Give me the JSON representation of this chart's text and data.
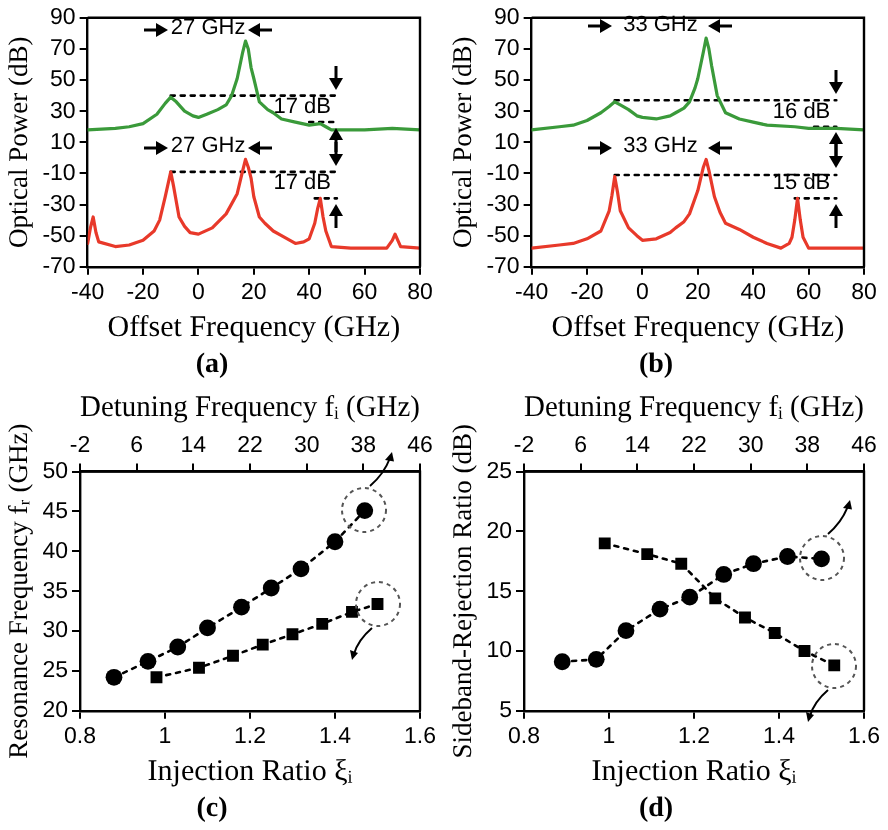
{
  "chart_data": [
    {
      "type": "line",
      "title": "(a)",
      "xlabel": "Offset Frequency (GHz)",
      "ylabel": "Optical Power (dB)",
      "xlim": [
        -40,
        80
      ],
      "xticks": [
        -40,
        -20,
        0,
        20,
        40,
        60,
        80
      ],
      "ylim": [
        -70,
        90
      ],
      "yticks": [
        -70,
        -50,
        -30,
        -10,
        10,
        30,
        50,
        70,
        90
      ],
      "grid": false,
      "marker": "none",
      "line_style": "solid",
      "series": [
        {
          "color": "#3a9a3a",
          "x": [
            -40,
            -30,
            -25,
            -20,
            -15,
            -12,
            -10,
            -8,
            -5,
            -2,
            0,
            3,
            7,
            10,
            12,
            14,
            16,
            17,
            18,
            19,
            20,
            22,
            25,
            27,
            30,
            35,
            40,
            44,
            46,
            48,
            60,
            70,
            80
          ],
          "values": [
            18,
            19,
            20,
            22,
            28,
            35,
            39,
            36,
            30,
            27,
            26,
            28,
            31,
            34,
            40,
            51,
            68,
            75,
            70,
            58,
            51,
            36,
            31,
            29,
            25,
            23,
            21,
            22,
            20,
            18,
            18,
            19,
            18
          ]
        },
        {
          "color": "#e8392a",
          "x": [
            -40,
            -39,
            -38,
            -37,
            -36,
            -30,
            -25,
            -20,
            -16,
            -14,
            -12,
            -10,
            -9,
            -7,
            -5,
            -3,
            0,
            5,
            10,
            14,
            16,
            17,
            18,
            19,
            20,
            22,
            24,
            27,
            30,
            35,
            38,
            40,
            42,
            43,
            44,
            45,
            46,
            48,
            55,
            60,
            68,
            70,
            71,
            72,
            73,
            80
          ],
          "values": [
            -55,
            -45,
            -38,
            -48,
            -54,
            -57,
            -56,
            -53,
            -47,
            -40,
            -25,
            -9,
            -18,
            -38,
            -44,
            -48,
            -49,
            -45,
            -36,
            -23,
            -8,
            -1,
            -6,
            -13,
            -25,
            -38,
            -42,
            -47,
            -50,
            -55,
            -54,
            -52,
            -42,
            -33,
            -26,
            -38,
            -47,
            -57,
            -58,
            -58,
            -58,
            -53,
            -49,
            -53,
            -57,
            -58
          ]
        },
        {
          "type": "line",
          "color": "#000000",
          "line_style": "dotted",
          "x": [
            -10,
            50
          ],
          "values": [
            40,
            40
          ]
        },
        {
          "type": "line",
          "color": "#000000",
          "line_style": "dotted",
          "x": [
            40,
            50
          ],
          "values": [
            23,
            23
          ]
        },
        {
          "type": "line",
          "color": "#000000",
          "line_style": "dotted",
          "x": [
            -10,
            50
          ],
          "values": [
            -9,
            -9
          ]
        },
        {
          "type": "line",
          "color": "#000000",
          "line_style": "dotted",
          "x": [
            42,
            50
          ],
          "values": [
            -26,
            -26
          ]
        }
      ],
      "annotations": [
        "27 GHz",
        "17 dB",
        "27 GHz",
        "17 dB"
      ]
    },
    {
      "type": "line",
      "title": "(b)",
      "xlabel": "Offset Frequency (GHz)",
      "ylabel": "Optical Power (dB)",
      "xlim": [
        -40,
        80
      ],
      "xticks": [
        -40,
        -20,
        0,
        20,
        40,
        60,
        80
      ],
      "ylim": [
        -70,
        90
      ],
      "yticks": [
        -70,
        -50,
        -30,
        -10,
        10,
        30,
        50,
        70,
        90
      ],
      "grid": false,
      "marker": "none",
      "line_style": "solid",
      "series": [
        {
          "color": "#3a9a3a",
          "x": [
            -40,
            -30,
            -25,
            -20,
            -15,
            -12,
            -10,
            -8,
            -5,
            -2,
            0,
            5,
            10,
            12,
            15,
            17,
            19,
            20,
            22,
            23,
            24,
            25,
            27,
            30,
            35,
            40,
            45,
            55,
            60,
            70,
            80
          ],
          "values": [
            18,
            20,
            21,
            24,
            29,
            33,
            36,
            34,
            31,
            27,
            26,
            25,
            27,
            29,
            32,
            36,
            45,
            51,
            68,
            77,
            70,
            59,
            40,
            29,
            25,
            23,
            21,
            20,
            19,
            19,
            18
          ]
        },
        {
          "color": "#e8392a",
          "x": [
            -40,
            -30,
            -25,
            -20,
            -15,
            -12,
            -11,
            -10,
            -9,
            -8,
            -5,
            -2,
            0,
            5,
            10,
            12,
            15,
            17,
            20,
            22,
            23,
            24,
            26,
            28,
            30,
            35,
            40,
            45,
            50,
            53,
            54,
            55,
            56,
            57,
            58,
            60,
            70,
            80
          ],
          "values": [
            -58,
            -56,
            -55,
            -52,
            -47,
            -34,
            -24,
            -12,
            -22,
            -34,
            -45,
            -50,
            -53,
            -52,
            -48,
            -45,
            -41,
            -36,
            -21,
            -6,
            -1,
            -8,
            -25,
            -35,
            -42,
            -46,
            -51,
            -55,
            -58,
            -55,
            -51,
            -40,
            -26,
            -40,
            -51,
            -58,
            -58,
            -58
          ]
        },
        {
          "type": "line",
          "color": "#000000",
          "line_style": "dotted",
          "x": [
            -10,
            70
          ],
          "values": [
            37,
            37
          ]
        },
        {
          "type": "line",
          "color": "#000000",
          "line_style": "dotted",
          "x": [
            62,
            70
          ],
          "values": [
            20,
            20
          ]
        },
        {
          "type": "line",
          "color": "#000000",
          "line_style": "dotted",
          "x": [
            -10,
            70
          ],
          "values": [
            -11,
            -11
          ]
        },
        {
          "type": "line",
          "color": "#000000",
          "line_style": "dotted",
          "x": [
            55,
            70
          ],
          "values": [
            -26,
            -26
          ]
        }
      ],
      "annotations": [
        "33 GHz",
        "16 dB",
        "33 GHz",
        "15 dB"
      ]
    },
    {
      "type": "line",
      "title": "(c)",
      "xlabel": "Injection Ratio ξᵢ",
      "x2label": "Detuning Frequency fᵢ (GHz)",
      "ylabel": "Resonance Frequency fᵣ (GHz)",
      "xlim": [
        0.8,
        1.6
      ],
      "xticks": [
        0.8,
        1,
        1.2,
        1.4,
        1.6
      ],
      "x2lim": [
        -2,
        46
      ],
      "x2ticks": [
        -2,
        6,
        14,
        22,
        30,
        38,
        46
      ],
      "ylim": [
        20,
        50
      ],
      "yticks": [
        20,
        25,
        30,
        35,
        40,
        45,
        50
      ],
      "grid": false,
      "line_style": "dotted",
      "series": [
        {
          "color": "#000000",
          "marker": "circle",
          "x": [
            0.88,
            0.96,
            1.03,
            1.1,
            1.18,
            1.25,
            1.32,
            1.4,
            1.47
          ],
          "values": [
            24.2,
            26.2,
            28.0,
            30.4,
            33.0,
            35.4,
            37.8,
            41.2,
            45.1
          ]
        },
        {
          "color": "#000000",
          "marker": "square",
          "x": [
            0.98,
            1.08,
            1.16,
            1.23,
            1.3,
            1.37,
            1.44,
            1.5
          ],
          "values": [
            24.2,
            25.4,
            26.9,
            28.3,
            29.6,
            30.9,
            32.4,
            33.4
          ]
        }
      ]
    },
    {
      "type": "line",
      "title": "(d)",
      "xlabel": "Injection Ratio ξᵢ",
      "x2label": "Detuning Frequency fᵢ (GHz)",
      "ylabel": "Sideband-Rejection Ratio (dB)",
      "xlim": [
        0.8,
        1.6
      ],
      "xticks": [
        0.8,
        1,
        1.2,
        1.4,
        1.6
      ],
      "x2lim": [
        -2,
        46
      ],
      "x2ticks": [
        -2,
        6,
        14,
        22,
        30,
        38,
        46
      ],
      "ylim": [
        5,
        25
      ],
      "yticks": [
        5,
        10,
        15,
        20,
        25
      ],
      "grid": false,
      "line_style": "dotted",
      "series": [
        {
          "color": "#000000",
          "marker": "circle",
          "x": [
            0.89,
            0.97,
            1.04,
            1.12,
            1.19,
            1.27,
            1.34,
            1.42,
            1.5
          ],
          "values": [
            9.1,
            9.3,
            11.7,
            13.5,
            14.5,
            16.4,
            17.3,
            17.9,
            17.7
          ]
        },
        {
          "color": "#000000",
          "marker": "square",
          "x": [
            0.99,
            1.09,
            1.17,
            1.25,
            1.32,
            1.39,
            1.46,
            1.53
          ],
          "values": [
            19.0,
            18.1,
            17.3,
            14.4,
            12.8,
            11.5,
            10.0,
            8.8
          ]
        }
      ]
    }
  ]
}
